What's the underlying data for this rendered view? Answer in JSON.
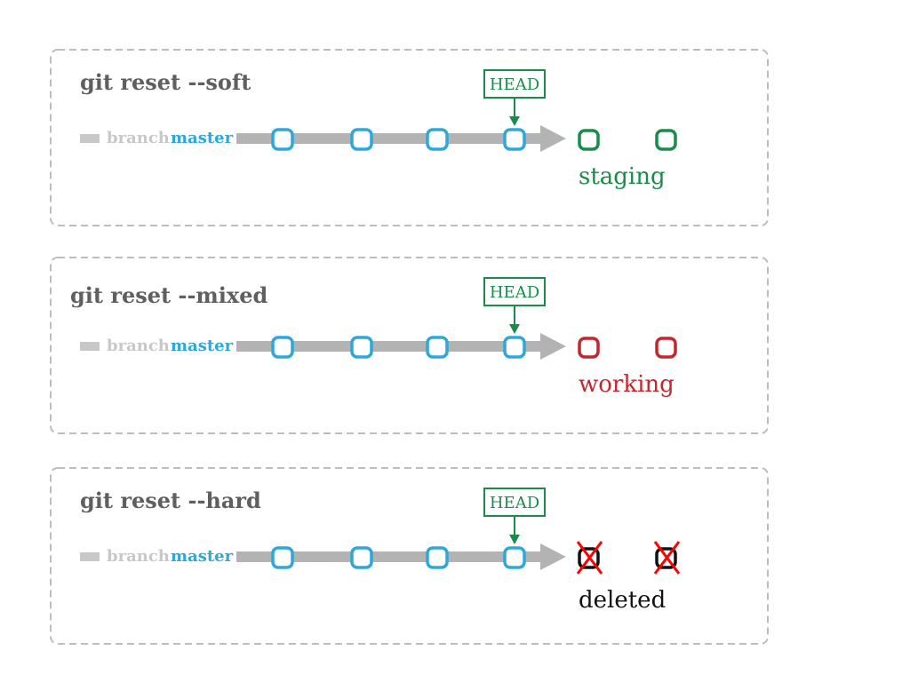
{
  "panels": [
    {
      "title": "git reset --soft",
      "branch_word": "branch",
      "branch_name": "master",
      "head_label": "HEAD",
      "state_label": "staging",
      "state_color": "#1a8c4a",
      "deleted": false
    },
    {
      "title": "git reset --mixed",
      "branch_word": "branch",
      "branch_name": "master",
      "head_label": "HEAD",
      "state_label": "working",
      "state_color": "#c1272d",
      "deleted": false
    },
    {
      "title": "git reset --hard",
      "branch_word": "branch",
      "branch_name": "master",
      "head_label": "HEAD",
      "state_label": "deleted",
      "state_color": "#111111",
      "deleted": true
    }
  ],
  "colors": {
    "commit": "#2ea8dc",
    "arrow": "#b3b3b3",
    "head": "#1a8c4a",
    "panel_border": "#bdbdbd",
    "delete_mark": "#ff0000"
  }
}
